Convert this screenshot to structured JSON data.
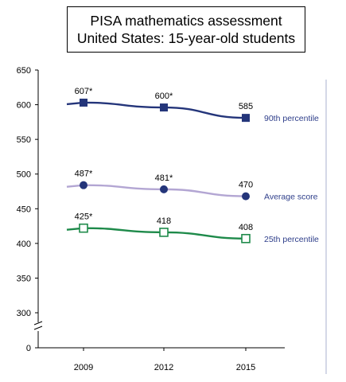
{
  "chart_data": {
    "type": "line",
    "title": [
      "PISA mathematics assessment",
      "United States: 15-year-old students"
    ],
    "xlabel": "",
    "ylabel": "",
    "categories": [
      "2009",
      "2012",
      "2015"
    ],
    "ylim": [
      300,
      650
    ],
    "y_axis_break": true,
    "y_ticks": [
      "0",
      "300",
      "350",
      "400",
      "450",
      "500",
      "550",
      "600",
      "650"
    ],
    "grid": false,
    "legend": "inline-right",
    "series": [
      {
        "name": "90th percentile",
        "values": [
          607,
          600,
          585
        ],
        "plot_values": [
          603,
          596,
          581
        ],
        "labels": [
          "607*",
          "600*",
          "585"
        ],
        "color": "#24357a",
        "marker": "filled-square"
      },
      {
        "name": "Average score",
        "values": [
          487,
          481,
          470
        ],
        "plot_values": [
          484,
          478,
          468
        ],
        "labels": [
          "487*",
          "481*",
          "470"
        ],
        "color": "#b3a6d3",
        "marker_color": "#24357a",
        "marker": "filled-circle"
      },
      {
        "name": "25th percentile",
        "values": [
          425,
          418,
          408
        ],
        "plot_values": [
          422,
          416,
          407
        ],
        "labels": [
          "425*",
          "418",
          "408"
        ],
        "color": "#1e8a4a",
        "marker": "open-square"
      }
    ]
  }
}
